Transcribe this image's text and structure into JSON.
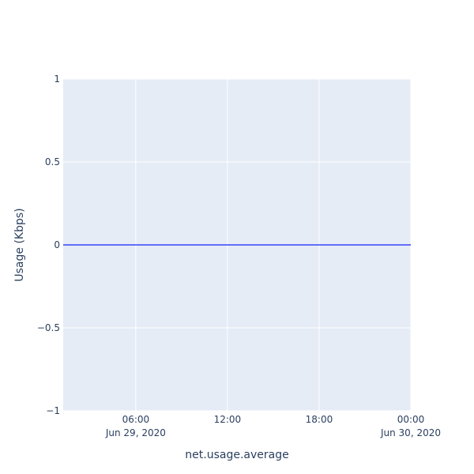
{
  "chart_data": {
    "type": "line",
    "title": "",
    "xlabel": "net.usage.average",
    "ylabel": "Usage (Kbps)",
    "x_range": [
      "2020-06-29 01:15",
      "2020-06-30 00:00"
    ],
    "ylim": [
      -1,
      1
    ],
    "grid": true,
    "legend": "none",
    "x_ticks": [
      {
        "time": "2020-06-29 06:00",
        "label": "06:00",
        "sublabel": "Jun 29, 2020"
      },
      {
        "time": "2020-06-29 12:00",
        "label": "12:00",
        "sublabel": ""
      },
      {
        "time": "2020-06-29 18:00",
        "label": "18:00",
        "sublabel": ""
      },
      {
        "time": "2020-06-30 00:00",
        "label": "00:00",
        "sublabel": "Jun 30, 2020"
      }
    ],
    "y_ticks": [
      {
        "value": 1,
        "label": "1"
      },
      {
        "value": 0.5,
        "label": "0.5"
      },
      {
        "value": 0,
        "label": "0"
      },
      {
        "value": -0.5,
        "label": "−0.5"
      },
      {
        "value": -1,
        "label": "−1"
      }
    ],
    "series": [
      {
        "color": "#636efa",
        "x": [
          "2020-06-29 01:15",
          "2020-06-30 00:00"
        ],
        "y": [
          0,
          0
        ]
      }
    ]
  },
  "colors": {
    "plot_bg": "#e5ecf6",
    "grid": "#ffffff",
    "text": "#2a3f5f"
  }
}
